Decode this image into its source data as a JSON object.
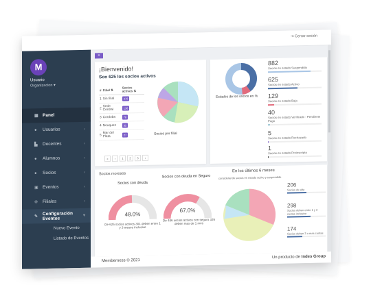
{
  "topbar": {
    "logout_label": "Cerrar sesión",
    "logout_icon": "sign-out-icon"
  },
  "user": {
    "avatar_letter": "M",
    "name": "Usuario",
    "org": "Organizacion"
  },
  "nav": [
    {
      "label": "Panel",
      "icon": "gauge-icon",
      "active": true
    },
    {
      "label": "Usuarios",
      "icon": "users-icon"
    },
    {
      "label": "Docentes",
      "icon": "building-icon"
    },
    {
      "label": "Alumnos",
      "icon": "group-icon"
    },
    {
      "label": "Socios",
      "icon": "people-icon"
    },
    {
      "label": "Eventos",
      "icon": "calendar-icon"
    },
    {
      "label": "Filiales",
      "icon": "branch-icon"
    },
    {
      "label": "Configuración Eventos",
      "icon": "edit-icon",
      "expanded": true
    }
  ],
  "nav_sub": [
    "Nuevo Evento",
    "Listado de Eventos"
  ],
  "welcome": {
    "greeting": "¡Bienvenido!",
    "socios_text": "Son 625 los socios activos",
    "table_headers": [
      "#",
      "Filial ⇅",
      "Socios activos ⇅"
    ],
    "rows": [
      {
        "n": "1",
        "filial": "Sin filial",
        "count": "379"
      },
      {
        "n": "2",
        "filial": "Sede Central",
        "count": "136"
      },
      {
        "n": "3",
        "filial": "Cordoba",
        "count": "78"
      },
      {
        "n": "4",
        "filial": "Neuquen",
        "count": "35"
      },
      {
        "n": "5",
        "filial": "Mar del Plata",
        "count": "27"
      }
    ],
    "pager": [
      "«",
      "‹",
      "1",
      "2",
      "3",
      "›"
    ],
    "pie_caption": "Socios por filial",
    "pie_colors": [
      "#a9e0bf",
      "#c5e6f5",
      "#d7efb8",
      "#f3a6b5",
      "#bda6e6",
      "#f8d6b0"
    ]
  },
  "estados": {
    "label": "Estados de los socios en %",
    "stats": [
      {
        "value": "882",
        "label": "Socios en estado Suspendido",
        "fill": 0.8,
        "color": "#a9c6e6"
      },
      {
        "value": "625",
        "label": "Socios en estado Activo",
        "fill": 0.55,
        "color": "#4a6fa5"
      },
      {
        "value": "129",
        "label": "Socios en estado Baja",
        "fill": 0.12,
        "color": "#e36b7c"
      },
      {
        "value": "40",
        "label": "Socios en estado Verificado - Pendiente Pago",
        "fill": 0.04,
        "color": "#9ac6d4"
      },
      {
        "value": "5",
        "label": "Socios en estado Rechazado",
        "fill": 0.01,
        "color": "#7a5cc7"
      },
      {
        "value": "1",
        "label": "Socios en estado Preinscripto",
        "fill": 0.01,
        "color": "#333333"
      }
    ]
  },
  "morosos": {
    "title": "Socios morosos",
    "g1_title": "Socios con deuda",
    "g1_pct": "48.0%",
    "g1_fill": 0.48,
    "g1_note": "De 625 socios activos 301 deben entre 1 y 3 meses inclusive",
    "g2_title": "Socios con deuda en Seguro",
    "g2_pct": "67.0%",
    "g2_fill": 0.67,
    "g2_note": "De 486 socios activos con seguro 326 deben mas de 1 mes",
    "last6_title": "En los últimos 6 meses",
    "last6_sub": "considerando socios en estado activo y suspendido",
    "stats": [
      {
        "value": "206",
        "label": "Socios de alta",
        "fill": 0.5,
        "color": "#4a6fa5"
      },
      {
        "value": "298",
        "label": "Socios deben entre 1 y 3 cuotas inclusive",
        "fill": 0.6,
        "color": "#4a6fa5"
      },
      {
        "value": "174",
        "label": "Socios deben 3 o mas cuotas",
        "fill": 0.4,
        "color": "#4a6fa5"
      }
    ]
  },
  "footer": {
    "left": "Memberness © 2021",
    "right_prefix": "Un producto de ",
    "right_brand": "Indes Group"
  }
}
